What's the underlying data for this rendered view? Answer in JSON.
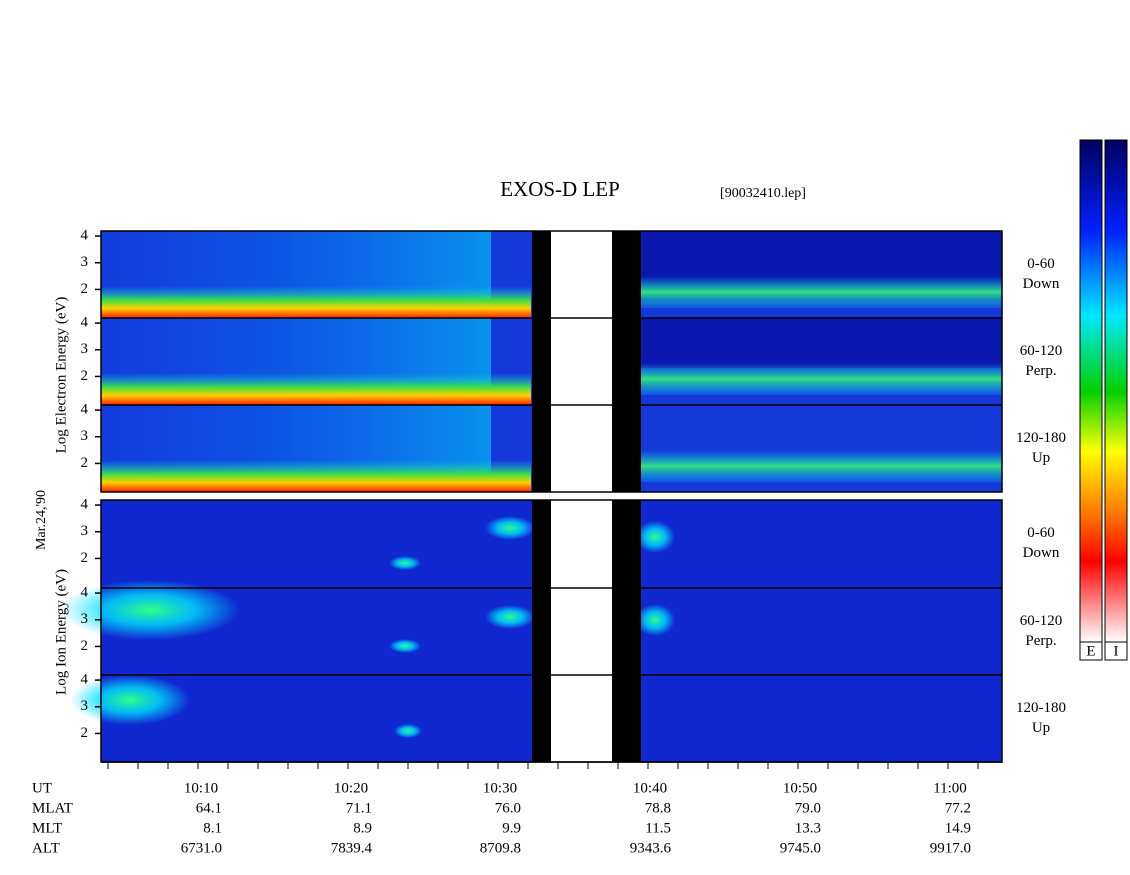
{
  "title": "EXOS-D LEP",
  "file": "[90032410.lep]",
  "date_label": "Mar.24,'90",
  "electron": {
    "ylabel": "Log  Electron  Energy (eV)",
    "yticks": [
      2,
      3,
      4
    ],
    "ylim": [
      0.93,
      4.19
    ],
    "panels": [
      {
        "range": "0-60",
        "direction": "Down"
      },
      {
        "range": "60-120",
        "direction": "Perp."
      },
      {
        "range": "120-180",
        "direction": "Up"
      }
    ]
  },
  "ion": {
    "ylabel": "Log  Ion  Energy (eV)",
    "yticks": [
      2,
      3,
      4
    ],
    "ylim": [
      0.93,
      4.19
    ],
    "panels": [
      {
        "range": "0-60",
        "direction": "Down"
      },
      {
        "range": "60-120",
        "direction": "Perp."
      },
      {
        "range": "120-180",
        "direction": "Up"
      }
    ]
  },
  "colorbars": [
    "E",
    "I"
  ],
  "table": {
    "rows": [
      [
        "UT",
        "10:10",
        "10:20",
        "10:30",
        "10:40",
        "10:50",
        "11:00"
      ],
      [
        "MLAT",
        "64.1",
        "71.1",
        "76.0",
        "78.8",
        "79.0",
        "77.2"
      ],
      [
        "MLT",
        "8.1",
        "8.9",
        "9.9",
        "11.5",
        "13.3",
        "14.9"
      ],
      [
        "ALT",
        "6731.0",
        "7839.4",
        "8709.8",
        "9343.6",
        "9745.0",
        "9917.0"
      ]
    ]
  }
}
